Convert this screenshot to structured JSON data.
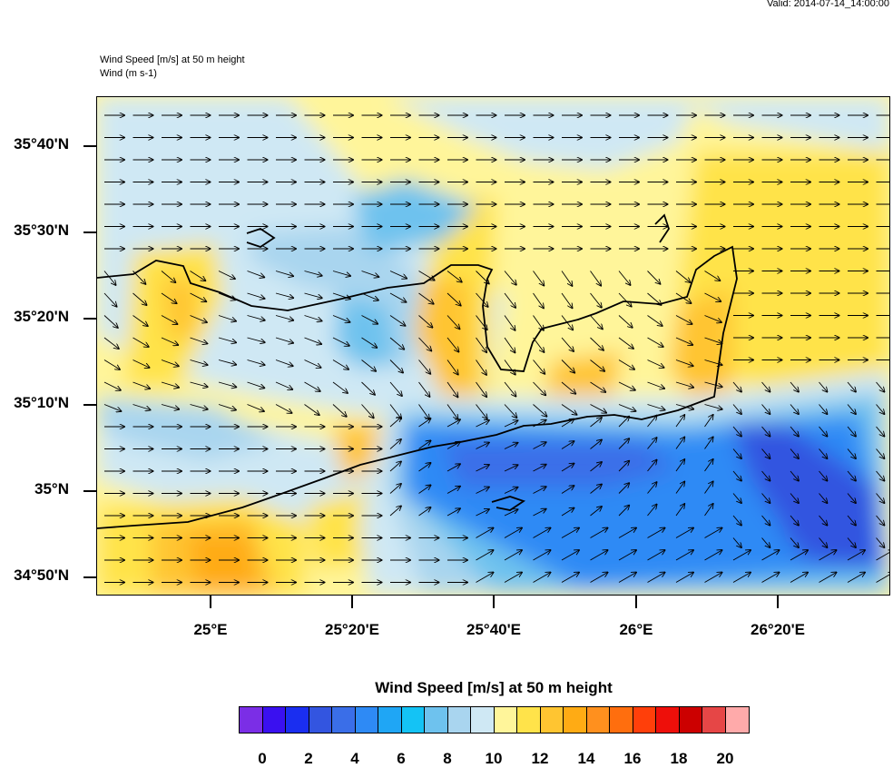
{
  "header": {
    "valid": "Valid: 2014-07-14_14:00:00",
    "field_title": "Wind Speed [m/s] at 50 m height",
    "vector_title": "Wind   (m s-1)"
  },
  "axes": {
    "y_labels": [
      "35°40'N",
      "35°30'N",
      "35°20'N",
      "35°10'N",
      "35°N",
      "34°50'N"
    ],
    "x_labels": [
      "25°E",
      "25°20'E",
      "25°40'E",
      "26°E",
      "26°20'E"
    ]
  },
  "colorbar": {
    "title": "Wind Speed [m/s] at 50 m height",
    "labels": [
      "0",
      "2",
      "4",
      "6",
      "8",
      "10",
      "12",
      "14",
      "16",
      "18",
      "20"
    ],
    "colors": [
      "#7b2ee6",
      "#3a10f0",
      "#1a2ef0",
      "#3355e0",
      "#3a6ee8",
      "#2e8af5",
      "#1fa6f5",
      "#14c3f5",
      "#6ec2ee",
      "#a9d5ef",
      "#cfe8f4",
      "#fff59a",
      "#ffe34a",
      "#ffc531",
      "#ffab14",
      "#ff901e",
      "#ff6e0e",
      "#ff3f0a",
      "#ee0f0a",
      "#cc0000",
      "#e64646",
      "#ffaaaa"
    ]
  },
  "map_colors": {
    "land_outline": "#000000",
    "light_yellow": "#fff59a",
    "yellow": "#ffe34a",
    "orange": "#ffc531",
    "dark_orange": "#ffab14",
    "pale_blue": "#cfe8f4",
    "light_blue": "#a9d5ef",
    "sky_blue": "#6ec2ee",
    "blue": "#2e8af5",
    "deep_blue": "#3a6ee8",
    "indigo": "#3355e0"
  }
}
